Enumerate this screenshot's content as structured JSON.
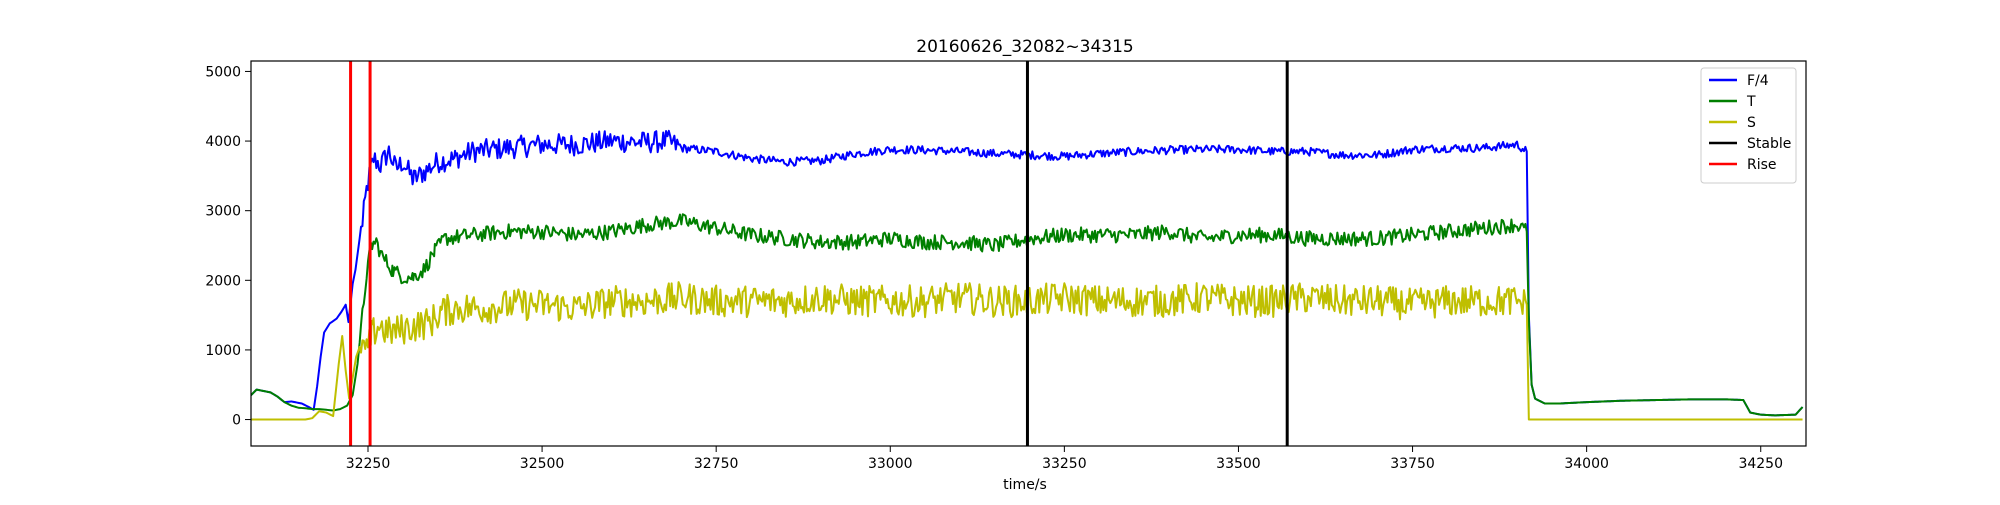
{
  "chart_data": {
    "type": "line",
    "title": "20160626_32082~34315",
    "xlabel": "time/s",
    "ylabel": "",
    "xlim": [
      32082,
      34315
    ],
    "ylim": [
      -380,
      5150
    ],
    "xticks": [
      32250,
      32500,
      32750,
      33000,
      33250,
      33500,
      33750,
      34000,
      34250
    ],
    "yticks": [
      0,
      1000,
      2000,
      3000,
      4000,
      5000
    ],
    "grid": false,
    "legend_position": "top-right",
    "series": [
      {
        "name": "F/4",
        "color": "#0000ff",
        "points": [
          [
            32082,
            350
          ],
          [
            32090,
            430
          ],
          [
            32100,
            410
          ],
          [
            32110,
            390
          ],
          [
            32120,
            330
          ],
          [
            32130,
            250
          ],
          [
            32140,
            260
          ],
          [
            32155,
            230
          ],
          [
            32165,
            180
          ],
          [
            32172,
            140
          ],
          [
            32177,
            480
          ],
          [
            32182,
            900
          ],
          [
            32187,
            1250
          ],
          [
            32195,
            1380
          ],
          [
            32205,
            1450
          ],
          [
            32212,
            1550
          ],
          [
            32218,
            1650
          ],
          [
            32222,
            1400
          ],
          [
            32228,
            1950
          ],
          [
            32232,
            2150
          ],
          [
            32238,
            2600
          ],
          [
            32243,
            2900
          ],
          [
            32248,
            3300
          ],
          [
            32253,
            3550
          ],
          [
            32258,
            3750
          ],
          [
            32268,
            3650
          ],
          [
            32280,
            3850
          ],
          [
            32290,
            3600
          ],
          [
            32300,
            3700
          ],
          [
            32315,
            3450
          ],
          [
            32330,
            3550
          ],
          [
            32350,
            3700
          ],
          [
            32375,
            3750
          ],
          [
            32400,
            3850
          ],
          [
            32450,
            3900
          ],
          [
            32500,
            3950
          ],
          [
            32550,
            3950
          ],
          [
            32600,
            4000
          ],
          [
            32650,
            3980
          ],
          [
            32680,
            4000
          ],
          [
            32700,
            3900
          ],
          [
            32750,
            3850
          ],
          [
            32800,
            3750
          ],
          [
            32850,
            3700
          ],
          [
            32900,
            3720
          ],
          [
            32950,
            3820
          ],
          [
            33000,
            3880
          ],
          [
            33050,
            3870
          ],
          [
            33100,
            3850
          ],
          [
            33150,
            3820
          ],
          [
            33200,
            3800
          ],
          [
            33250,
            3780
          ],
          [
            33300,
            3820
          ],
          [
            33350,
            3850
          ],
          [
            33400,
            3870
          ],
          [
            33450,
            3880
          ],
          [
            33500,
            3880
          ],
          [
            33550,
            3850
          ],
          [
            33600,
            3850
          ],
          [
            33650,
            3800
          ],
          [
            33700,
            3800
          ],
          [
            33750,
            3880
          ],
          [
            33800,
            3900
          ],
          [
            33850,
            3900
          ],
          [
            33900,
            3950
          ],
          [
            33914,
            3850
          ],
          [
            33917,
            1500
          ],
          [
            33921,
            500
          ],
          [
            33926,
            300
          ],
          [
            33940,
            230
          ],
          [
            33960,
            230
          ],
          [
            34000,
            250
          ],
          [
            34050,
            270
          ],
          [
            34100,
            280
          ],
          [
            34150,
            290
          ],
          [
            34200,
            290
          ],
          [
            34225,
            280
          ],
          [
            34235,
            100
          ],
          [
            34250,
            70
          ],
          [
            34270,
            60
          ],
          [
            34300,
            70
          ],
          [
            34310,
            180
          ]
        ]
      },
      {
        "name": "T",
        "color": "#007f00",
        "points": [
          [
            32082,
            350
          ],
          [
            32090,
            430
          ],
          [
            32100,
            410
          ],
          [
            32110,
            390
          ],
          [
            32120,
            330
          ],
          [
            32130,
            250
          ],
          [
            32140,
            200
          ],
          [
            32150,
            170
          ],
          [
            32162,
            160
          ],
          [
            32170,
            150
          ],
          [
            32180,
            150
          ],
          [
            32200,
            130
          ],
          [
            32210,
            150
          ],
          [
            32220,
            200
          ],
          [
            32228,
            350
          ],
          [
            32235,
            800
          ],
          [
            32242,
            1500
          ],
          [
            32248,
            2100
          ],
          [
            32255,
            2500
          ],
          [
            32262,
            2550
          ],
          [
            32270,
            2350
          ],
          [
            32285,
            2150
          ],
          [
            32300,
            2050
          ],
          [
            32315,
            2050
          ],
          [
            32330,
            2150
          ],
          [
            32345,
            2400
          ],
          [
            32360,
            2600
          ],
          [
            32400,
            2650
          ],
          [
            32450,
            2700
          ],
          [
            32500,
            2700
          ],
          [
            32550,
            2650
          ],
          [
            32600,
            2700
          ],
          [
            32650,
            2800
          ],
          [
            32700,
            2850
          ],
          [
            32750,
            2750
          ],
          [
            32800,
            2650
          ],
          [
            32850,
            2600
          ],
          [
            32900,
            2550
          ],
          [
            32950,
            2550
          ],
          [
            33000,
            2600
          ],
          [
            33050,
            2550
          ],
          [
            33100,
            2550
          ],
          [
            33150,
            2500
          ],
          [
            33200,
            2600
          ],
          [
            33250,
            2650
          ],
          [
            33300,
            2650
          ],
          [
            33350,
            2650
          ],
          [
            33400,
            2700
          ],
          [
            33450,
            2600
          ],
          [
            33500,
            2650
          ],
          [
            33550,
            2650
          ],
          [
            33600,
            2600
          ],
          [
            33650,
            2600
          ],
          [
            33700,
            2600
          ],
          [
            33750,
            2650
          ],
          [
            33800,
            2700
          ],
          [
            33850,
            2750
          ],
          [
            33900,
            2800
          ],
          [
            33914,
            2700
          ],
          [
            33917,
            1400
          ],
          [
            33921,
            500
          ],
          [
            33926,
            300
          ],
          [
            33940,
            230
          ],
          [
            33960,
            230
          ],
          [
            34000,
            250
          ],
          [
            34050,
            270
          ],
          [
            34100,
            280
          ],
          [
            34150,
            290
          ],
          [
            34200,
            290
          ],
          [
            34225,
            280
          ],
          [
            34235,
            100
          ],
          [
            34250,
            70
          ],
          [
            34270,
            60
          ],
          [
            34300,
            70
          ],
          [
            34310,
            180
          ]
        ]
      },
      {
        "name": "S",
        "color": "#bfbf00",
        "points": [
          [
            32082,
            0
          ],
          [
            32160,
            0
          ],
          [
            32170,
            20
          ],
          [
            32180,
            120
          ],
          [
            32190,
            100
          ],
          [
            32200,
            50
          ],
          [
            32208,
            800
          ],
          [
            32213,
            1200
          ],
          [
            32218,
            700
          ],
          [
            32223,
            300
          ],
          [
            32228,
            600
          ],
          [
            32233,
            900
          ],
          [
            32240,
            1100
          ],
          [
            32248,
            950
          ],
          [
            32255,
            1200
          ],
          [
            32265,
            1350
          ],
          [
            32280,
            1250
          ],
          [
            32300,
            1300
          ],
          [
            32320,
            1350
          ],
          [
            32340,
            1400
          ],
          [
            32355,
            1550
          ],
          [
            32380,
            1600
          ],
          [
            32420,
            1600
          ],
          [
            32460,
            1650
          ],
          [
            32500,
            1650
          ],
          [
            32550,
            1600
          ],
          [
            32600,
            1700
          ],
          [
            32650,
            1700
          ],
          [
            32700,
            1750
          ],
          [
            32750,
            1700
          ],
          [
            32800,
            1700
          ],
          [
            32850,
            1700
          ],
          [
            32900,
            1750
          ],
          [
            32950,
            1700
          ],
          [
            33000,
            1700
          ],
          [
            33050,
            1700
          ],
          [
            33100,
            1750
          ],
          [
            33150,
            1700
          ],
          [
            33200,
            1700
          ],
          [
            33250,
            1750
          ],
          [
            33300,
            1700
          ],
          [
            33350,
            1700
          ],
          [
            33400,
            1700
          ],
          [
            33450,
            1750
          ],
          [
            33500,
            1700
          ],
          [
            33550,
            1700
          ],
          [
            33600,
            1750
          ],
          [
            33650,
            1700
          ],
          [
            33700,
            1700
          ],
          [
            33750,
            1650
          ],
          [
            33800,
            1700
          ],
          [
            33850,
            1700
          ],
          [
            33900,
            1700
          ],
          [
            33914,
            1650
          ],
          [
            33917,
            0
          ],
          [
            34310,
            0
          ]
        ]
      }
    ],
    "vertical_markers": [
      {
        "name": "Stable",
        "color": "#000000",
        "x": [
          33197,
          33570
        ]
      },
      {
        "name": "Rise",
        "color": "#ff0000",
        "x": [
          32225,
          32253
        ]
      }
    ],
    "legend": [
      {
        "label": "F/4",
        "color": "#0000ff"
      },
      {
        "label": "T",
        "color": "#007f00"
      },
      {
        "label": "S",
        "color": "#bfbf00"
      },
      {
        "label": "Stable",
        "color": "#000000"
      },
      {
        "label": "Rise",
        "color": "#ff0000"
      }
    ]
  }
}
